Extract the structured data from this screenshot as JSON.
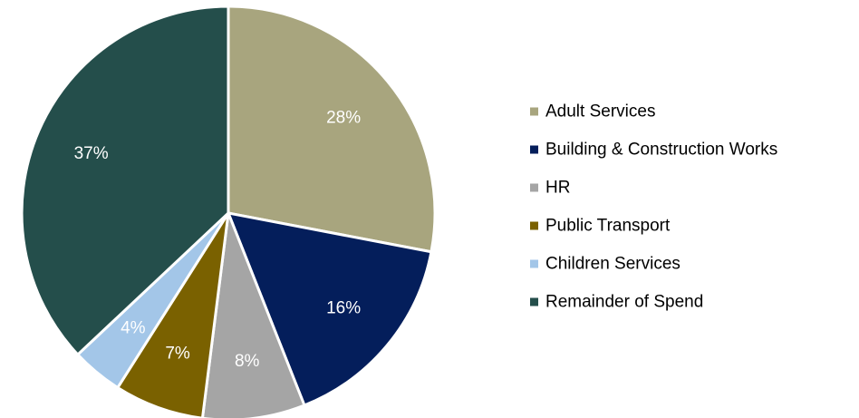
{
  "chart_data": {
    "type": "pie",
    "title": "",
    "legend_position": "right",
    "slices": [
      {
        "label": "Adult Services",
        "value": 28,
        "value_label": "28%",
        "color": "#a8a57e",
        "label_color": "#ffffff"
      },
      {
        "label": "Building & Construction Works",
        "value": 16,
        "value_label": "16%",
        "color": "#041e5b",
        "label_color": "#ffffff"
      },
      {
        "label": "HR",
        "value": 8,
        "value_label": "8%",
        "color": "#a5a5a5",
        "label_color": "#ffffff"
      },
      {
        "label": "Public Transport",
        "value": 7,
        "value_label": "7%",
        "color": "#7a6100",
        "label_color": "#ffffff"
      },
      {
        "label": "Children Services",
        "value": 4,
        "value_label": "4%",
        "color": "#a3c6e8",
        "label_color": "#ffffff"
      },
      {
        "label": "Remainder of Spend",
        "value": 37,
        "value_label": "37%",
        "color": "#244e4b",
        "label_color": "#ffffff"
      }
    ]
  }
}
